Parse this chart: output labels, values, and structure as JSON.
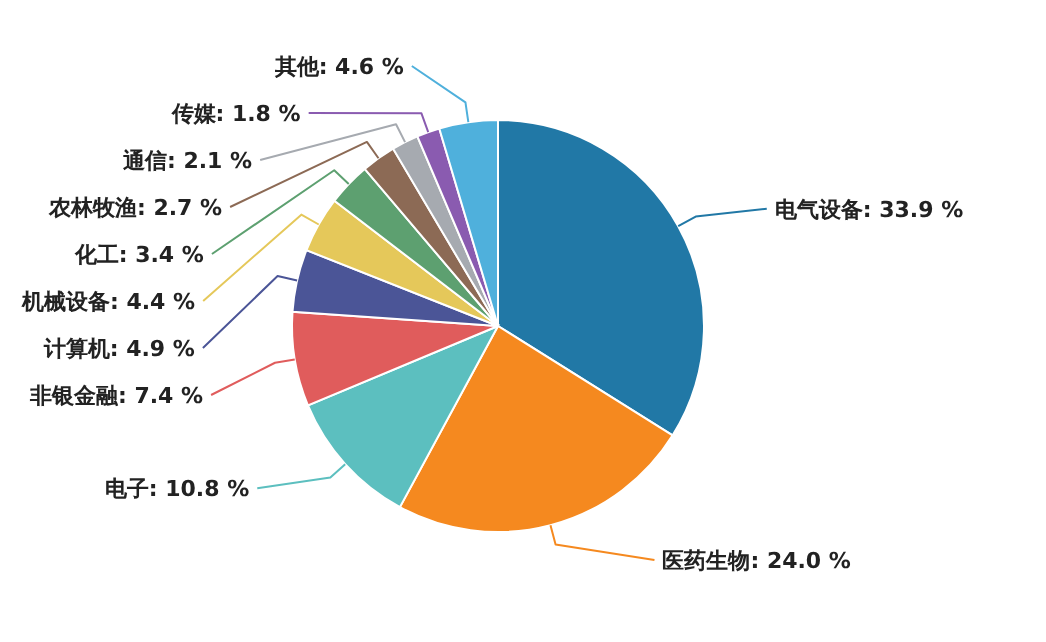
{
  "chart_data": {
    "type": "pie",
    "categories": [
      "电气设备",
      "医药生物",
      "电子",
      "非银金融",
      "计算机",
      "机械设备",
      "化工",
      "农林牧渔",
      "通信",
      "传媒",
      "其他"
    ],
    "values": [
      33.9,
      24.0,
      10.8,
      7.4,
      4.9,
      4.4,
      3.4,
      2.7,
      2.1,
      1.8,
      4.6
    ],
    "value_labels": [
      "33.9 %",
      "24.0 %",
      "10.8 %",
      "7.4 %",
      "4.9 %",
      "4.4 %",
      "3.4 %",
      "2.7 %",
      "2.1 %",
      "1.8 %",
      "4.6 %"
    ],
    "colors": [
      "#2178a6",
      "#f5891f",
      "#5cbfbf",
      "#e05c5c",
      "#4b5597",
      "#e5c85a",
      "#5da070",
      "#8c6a55",
      "#a6aab0",
      "#8a5bb0",
      "#4fb0dc"
    ]
  }
}
